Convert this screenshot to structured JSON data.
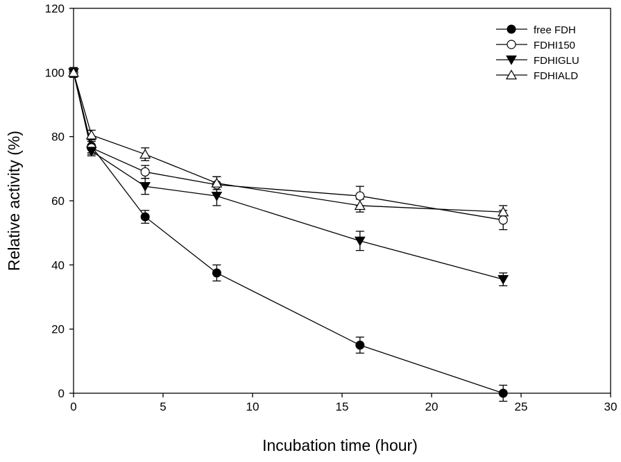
{
  "chart_data": {
    "type": "line",
    "title": "",
    "xlabel": "Incubation time (hour)",
    "ylabel": "Relative activity (%)",
    "xlim": [
      0,
      30
    ],
    "ylim": [
      0,
      120
    ],
    "xticks": [
      0,
      5,
      10,
      15,
      20,
      25,
      30
    ],
    "yticks": [
      0,
      20,
      40,
      60,
      80,
      100,
      120
    ],
    "grid": false,
    "legend_position": "top-right",
    "error_bars": true,
    "series": [
      {
        "name": "free FDH",
        "marker": "filled-circle",
        "x": [
          0,
          1,
          4,
          8,
          16,
          24
        ],
        "y": [
          100,
          77,
          55,
          37.5,
          15,
          0
        ],
        "error": [
          1.5,
          2,
          2,
          2.5,
          2.5,
          2.5
        ]
      },
      {
        "name": "FDHI150",
        "marker": "open-circle",
        "x": [
          0,
          1,
          4,
          8,
          16,
          24
        ],
        "y": [
          100,
          76.5,
          69,
          65,
          61.5,
          54
        ],
        "error": [
          1.5,
          2,
          2,
          2.5,
          3,
          3
        ]
      },
      {
        "name": "FDHIGLU",
        "marker": "filled-triangle-down",
        "x": [
          0,
          1,
          4,
          8,
          16,
          24
        ],
        "y": [
          100,
          75.5,
          64.5,
          61.5,
          47.5,
          35.5
        ],
        "error": [
          1.5,
          1.5,
          2.5,
          3,
          3,
          2
        ]
      },
      {
        "name": "FDHIALD",
        "marker": "open-triangle-up",
        "x": [
          0,
          1,
          4,
          8,
          16,
          24
        ],
        "y": [
          100,
          80.5,
          74.5,
          65.5,
          58.5,
          56.5
        ],
        "error": [
          1.5,
          1.5,
          2,
          2,
          2,
          2
        ]
      }
    ]
  },
  "colors": {
    "line": "#000000",
    "background": "#ffffff"
  }
}
